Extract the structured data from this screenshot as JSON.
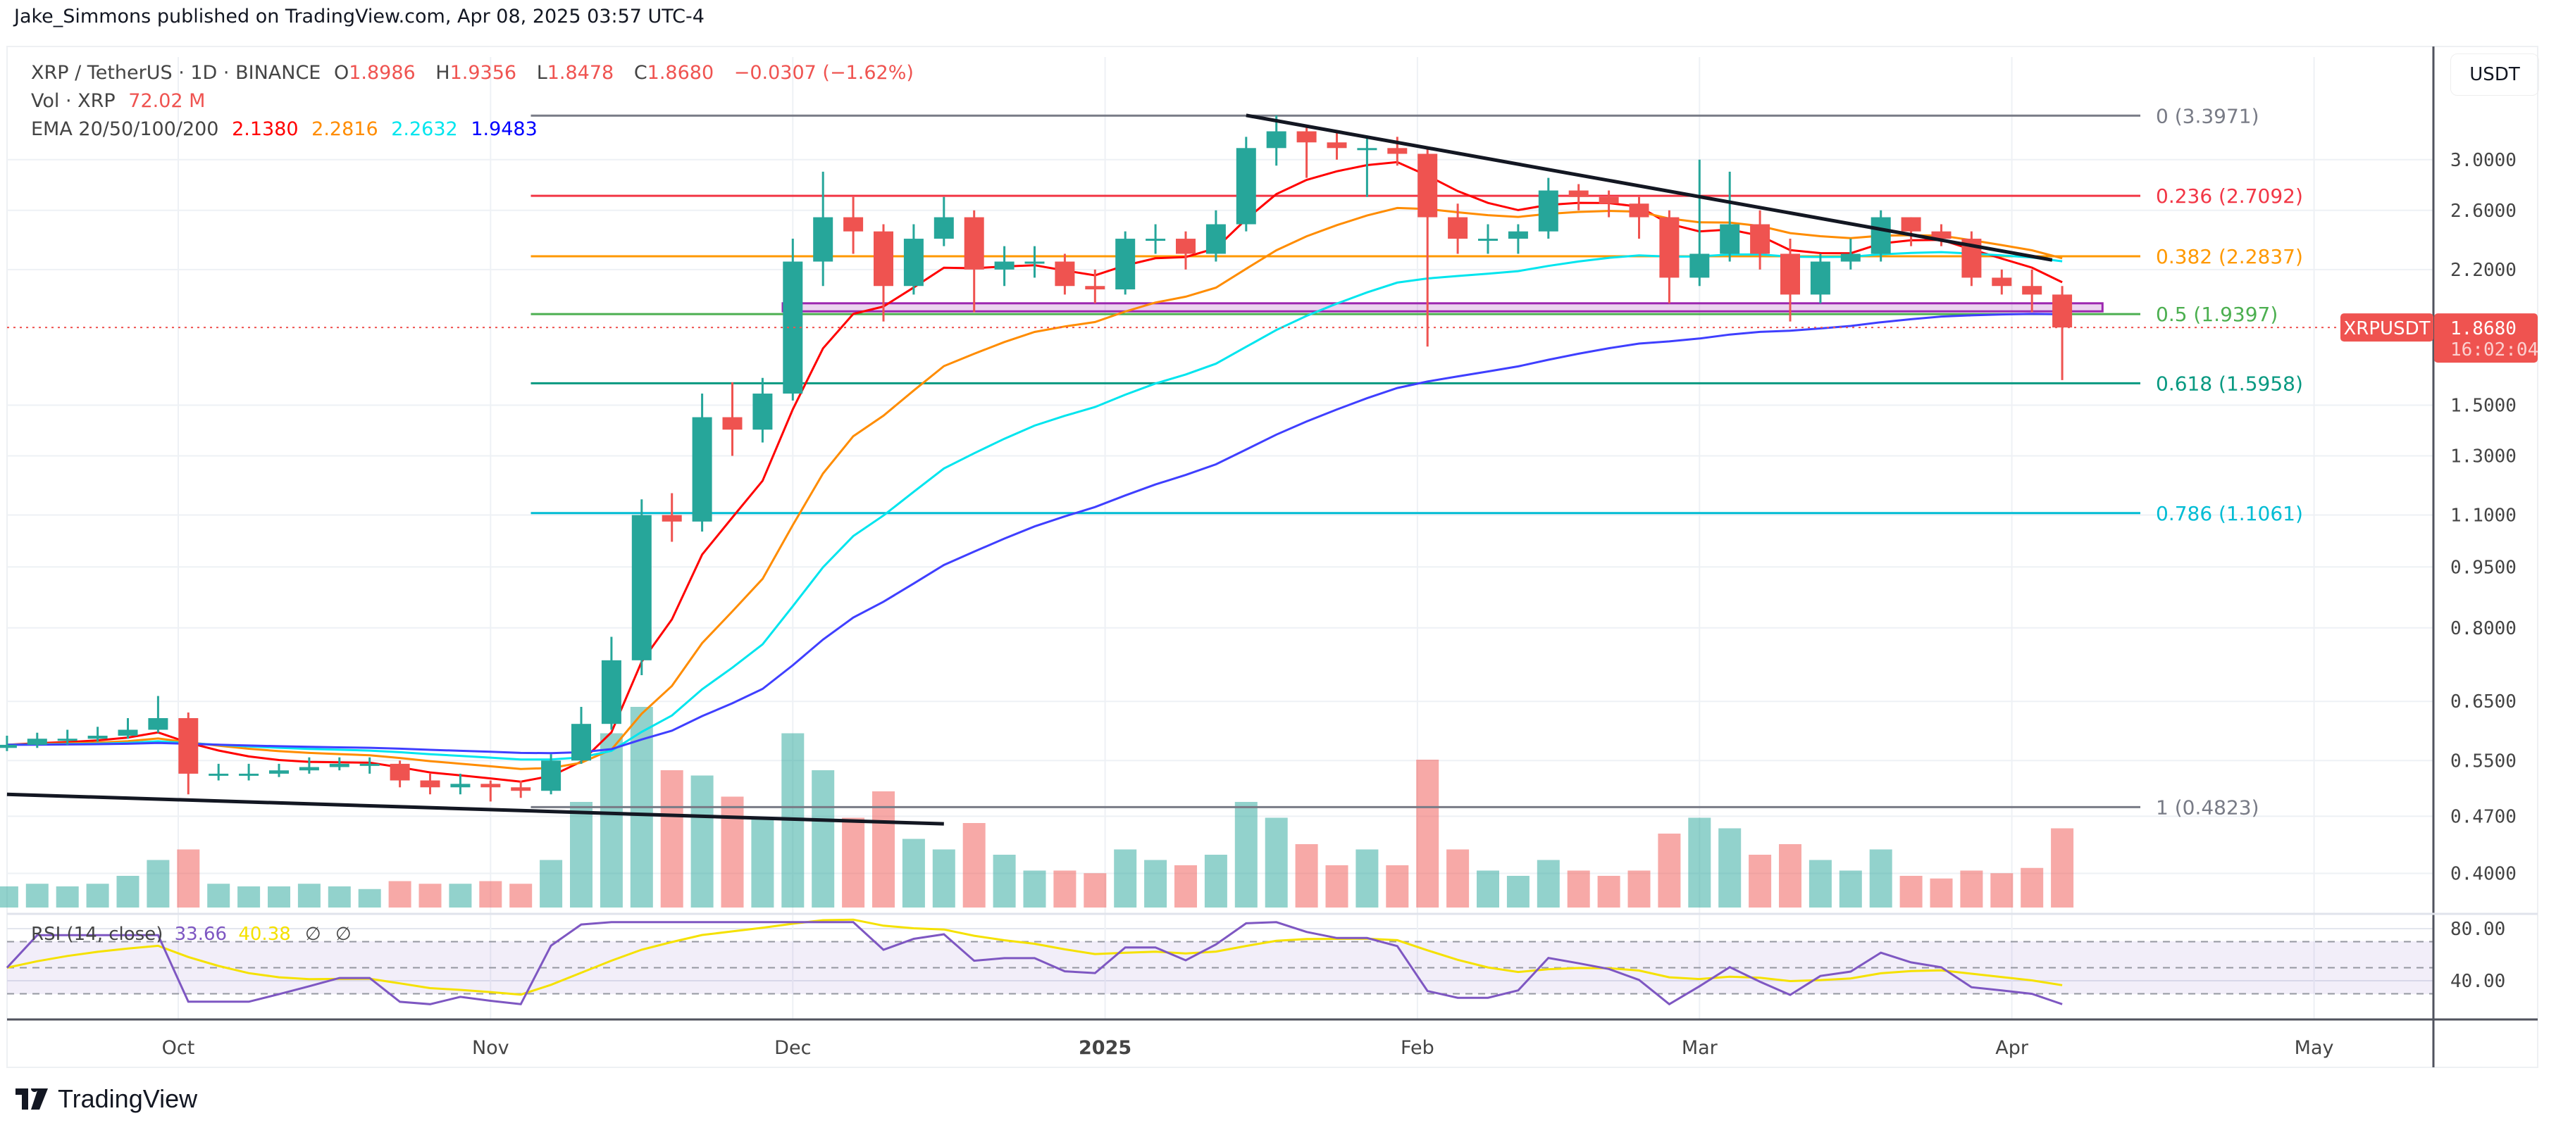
{
  "header": {
    "author_line": "Jake_Simmons published on TradingView.com, Apr 08, 2025 03:57 UTC-4"
  },
  "legend": {
    "symbol": "XRP / TetherUS · 1D · BINANCE",
    "o_label": "O",
    "o": "1.8986",
    "h_label": "H",
    "h": "1.9356",
    "l_label": "L",
    "l": "1.8478",
    "c_label": "C",
    "c": "1.8680",
    "change": "−0.0307 (−1.62%)",
    "vol_label": "Vol · XRP",
    "vol": "72.02 M",
    "ema_label": "EMA 20/50/100/200",
    "ema": [
      "2.1380",
      "2.2816",
      "2.2632",
      "1.9483"
    ]
  },
  "rsi_legend": {
    "label": "RSI (14, close)",
    "rsi": "33.66",
    "ma": "40.38",
    "v3": "∅",
    "v4": "∅"
  },
  "price_axis": {
    "currency": "USDT",
    "ticks": [
      "3.0000",
      "2.6000",
      "2.2000",
      "1.5000",
      "1.3000",
      "1.1000",
      "0.9500",
      "0.8000",
      "0.6500",
      "0.5500",
      "0.4700",
      "0.4000"
    ],
    "last_price": "1.8680",
    "countdown": "16:02:04",
    "symbol_tag": "XRPUSDT"
  },
  "rsi_axis": {
    "ticks": [
      "80.00",
      "40.00"
    ]
  },
  "time_axis": {
    "labels": [
      {
        "text": "Oct",
        "date": "2024-10-01"
      },
      {
        "text": "Nov",
        "date": "2024-11-01"
      },
      {
        "text": "Dec",
        "date": "2024-12-01"
      },
      {
        "text": "2025",
        "date": "2025-01-01"
      },
      {
        "text": "Feb",
        "date": "2025-02-01"
      },
      {
        "text": "Mar",
        "date": "2025-03-01"
      },
      {
        "text": "Apr",
        "date": "2025-04-01"
      },
      {
        "text": "May",
        "date": "2025-05-01"
      }
    ]
  },
  "footer": {
    "brand": "TradingView"
  },
  "colors": {
    "up": "#26a69a",
    "down": "#ef5350",
    "ema20": "#ff0000",
    "ema50": "#ff8c00",
    "ema100": "#00e5ee",
    "ema200": "#3f3fff",
    "rsi": "#7e57c2",
    "rsi_ma": "#f5e100"
  },
  "chart_data": {
    "type": "candlestick",
    "scale": "log",
    "symbol": "XRPUSDT",
    "columns": [
      "date",
      "open",
      "high",
      "low",
      "close",
      "volume_M"
    ],
    "candles": [
      [
        "2024-09-14",
        0.57,
        0.59,
        0.565,
        0.575,
        40
      ],
      [
        "2024-09-17",
        0.575,
        0.595,
        0.57,
        0.585,
        45
      ],
      [
        "2024-09-20",
        0.585,
        0.6,
        0.575,
        0.585,
        40
      ],
      [
        "2024-09-23",
        0.585,
        0.605,
        0.58,
        0.59,
        45
      ],
      [
        "2024-09-26",
        0.59,
        0.62,
        0.585,
        0.6,
        60
      ],
      [
        "2024-09-29",
        0.6,
        0.66,
        0.595,
        0.62,
        90
      ],
      [
        "2024-10-02",
        0.62,
        0.63,
        0.5,
        0.53,
        110
      ],
      [
        "2024-10-05",
        0.53,
        0.545,
        0.52,
        0.53,
        45
      ],
      [
        "2024-10-08",
        0.53,
        0.545,
        0.52,
        0.53,
        40
      ],
      [
        "2024-10-11",
        0.53,
        0.545,
        0.525,
        0.535,
        40
      ],
      [
        "2024-10-14",
        0.535,
        0.555,
        0.53,
        0.54,
        45
      ],
      [
        "2024-10-17",
        0.54,
        0.555,
        0.535,
        0.545,
        40
      ],
      [
        "2024-10-20",
        0.545,
        0.555,
        0.53,
        0.545,
        35
      ],
      [
        "2024-10-23",
        0.545,
        0.55,
        0.51,
        0.52,
        50
      ],
      [
        "2024-10-26",
        0.52,
        0.53,
        0.5,
        0.51,
        45
      ],
      [
        "2024-10-29",
        0.51,
        0.53,
        0.5,
        0.515,
        45
      ],
      [
        "2024-11-01",
        0.515,
        0.52,
        0.49,
        0.51,
        50
      ],
      [
        "2024-11-04",
        0.51,
        0.52,
        0.495,
        0.505,
        45
      ],
      [
        "2024-11-07",
        0.505,
        0.56,
        0.5,
        0.55,
        90
      ],
      [
        "2024-11-10",
        0.55,
        0.64,
        0.545,
        0.61,
        200
      ],
      [
        "2024-11-13",
        0.61,
        0.78,
        0.6,
        0.73,
        330
      ],
      [
        "2024-11-16",
        0.73,
        1.15,
        0.7,
        1.1,
        380
      ],
      [
        "2024-11-19",
        1.1,
        1.17,
        1.02,
        1.08,
        260
      ],
      [
        "2024-11-22",
        1.08,
        1.55,
        1.05,
        1.45,
        250
      ],
      [
        "2024-11-25",
        1.45,
        1.6,
        1.3,
        1.4,
        210
      ],
      [
        "2024-11-28",
        1.4,
        1.62,
        1.35,
        1.55,
        170
      ],
      [
        "2024-12-01",
        1.55,
        2.4,
        1.52,
        2.25,
        330
      ],
      [
        "2024-12-04",
        2.25,
        2.9,
        2.1,
        2.55,
        260
      ],
      [
        "2024-12-07",
        2.55,
        2.7,
        2.3,
        2.45,
        170
      ],
      [
        "2024-12-10",
        2.45,
        2.5,
        1.9,
        2.1,
        220
      ],
      [
        "2024-12-13",
        2.1,
        2.5,
        2.05,
        2.4,
        130
      ],
      [
        "2024-12-16",
        2.4,
        2.7,
        2.35,
        2.55,
        110
      ],
      [
        "2024-12-19",
        2.55,
        2.6,
        1.95,
        2.2,
        160
      ],
      [
        "2024-12-22",
        2.2,
        2.35,
        2.1,
        2.25,
        100
      ],
      [
        "2024-12-25",
        2.25,
        2.35,
        2.15,
        2.25,
        70
      ],
      [
        "2024-12-28",
        2.25,
        2.3,
        2.05,
        2.1,
        70
      ],
      [
        "2024-12-31",
        2.1,
        2.2,
        2.0,
        2.08,
        65
      ],
      [
        "2025-01-03",
        2.08,
        2.45,
        2.05,
        2.4,
        110
      ],
      [
        "2025-01-06",
        2.4,
        2.5,
        2.3,
        2.4,
        90
      ],
      [
        "2025-01-09",
        2.4,
        2.45,
        2.2,
        2.3,
        80
      ],
      [
        "2025-01-12",
        2.3,
        2.6,
        2.25,
        2.5,
        100
      ],
      [
        "2025-01-15",
        2.5,
        3.2,
        2.45,
        3.1,
        200
      ],
      [
        "2025-01-18",
        3.1,
        3.4,
        2.95,
        3.25,
        170
      ],
      [
        "2025-01-21",
        3.25,
        3.3,
        2.85,
        3.15,
        120
      ],
      [
        "2025-01-24",
        3.15,
        3.25,
        3.0,
        3.1,
        80
      ],
      [
        "2025-01-27",
        3.1,
        3.2,
        2.7,
        3.1,
        110
      ],
      [
        "2025-01-30",
        3.1,
        3.2,
        2.95,
        3.05,
        80
      ],
      [
        "2025-02-02",
        3.05,
        3.1,
        1.77,
        2.55,
        280
      ],
      [
        "2025-02-05",
        2.55,
        2.65,
        2.3,
        2.4,
        110
      ],
      [
        "2025-02-08",
        2.4,
        2.5,
        2.3,
        2.4,
        70
      ],
      [
        "2025-02-11",
        2.4,
        2.5,
        2.3,
        2.45,
        60
      ],
      [
        "2025-02-14",
        2.45,
        2.85,
        2.4,
        2.75,
        90
      ],
      [
        "2025-02-17",
        2.75,
        2.8,
        2.6,
        2.7,
        70
      ],
      [
        "2025-02-20",
        2.7,
        2.75,
        2.55,
        2.65,
        60
      ],
      [
        "2025-02-23",
        2.65,
        2.7,
        2.4,
        2.55,
        70
      ],
      [
        "2025-02-26",
        2.55,
        2.6,
        2.0,
        2.15,
        140
      ],
      [
        "2025-03-01",
        2.15,
        3.0,
        2.1,
        2.3,
        170
      ],
      [
        "2025-03-04",
        2.3,
        2.9,
        2.25,
        2.5,
        150
      ],
      [
        "2025-03-07",
        2.5,
        2.6,
        2.2,
        2.3,
        100
      ],
      [
        "2025-03-10",
        2.3,
        2.4,
        1.9,
        2.05,
        120
      ],
      [
        "2025-03-13",
        2.05,
        2.3,
        2.0,
        2.25,
        90
      ],
      [
        "2025-03-16",
        2.25,
        2.4,
        2.2,
        2.3,
        70
      ],
      [
        "2025-03-19",
        2.3,
        2.6,
        2.25,
        2.55,
        110
      ],
      [
        "2025-03-22",
        2.55,
        2.55,
        2.35,
        2.45,
        60
      ],
      [
        "2025-03-25",
        2.45,
        2.5,
        2.35,
        2.4,
        55
      ],
      [
        "2025-03-28",
        2.4,
        2.45,
        2.1,
        2.15,
        70
      ],
      [
        "2025-03-31",
        2.15,
        2.2,
        2.05,
        2.1,
        65
      ],
      [
        "2025-04-03",
        2.1,
        2.2,
        1.95,
        2.05,
        75
      ],
      [
        "2025-04-06",
        2.05,
        2.1,
        1.61,
        1.868,
        150
      ]
    ],
    "fib_levels": [
      {
        "label": "0 (3.3971)",
        "price": 3.3971,
        "color": "#787b86"
      },
      {
        "label": "0.236 (2.7092)",
        "price": 2.7092,
        "color": "#f23645"
      },
      {
        "label": "0.382 (2.2837)",
        "price": 2.2837,
        "color": "#ff9800"
      },
      {
        "label": "0.5 (1.9397)",
        "price": 1.9397,
        "color": "#4caf50"
      },
      {
        "label": "0.618 (1.5958)",
        "price": 1.5958,
        "color": "#089981"
      },
      {
        "label": "0.786 (1.1061)",
        "price": 1.1061,
        "color": "#00bcd4"
      },
      {
        "label": "1 (0.4823)",
        "price": 0.4823,
        "color": "#787b86"
      }
    ],
    "fib_range": [
      "2024-11-05",
      "2025-04-28"
    ],
    "trendlines": [
      {
        "from": [
          "2025-01-15",
          3.4
        ],
        "to": [
          "2025-04-05",
          2.26
        ]
      },
      {
        "from": [
          "2024-09-14",
          0.5
        ],
        "to": [
          "2024-12-16",
          0.46
        ]
      }
    ],
    "range_box": {
      "from": "2024-11-30",
      "to": "2025-04-10",
      "low": 1.955,
      "high": 2.0
    },
    "ema_periods": [
      20,
      50,
      100,
      200
    ],
    "rsi_bands": [
      70,
      50,
      30
    ]
  }
}
